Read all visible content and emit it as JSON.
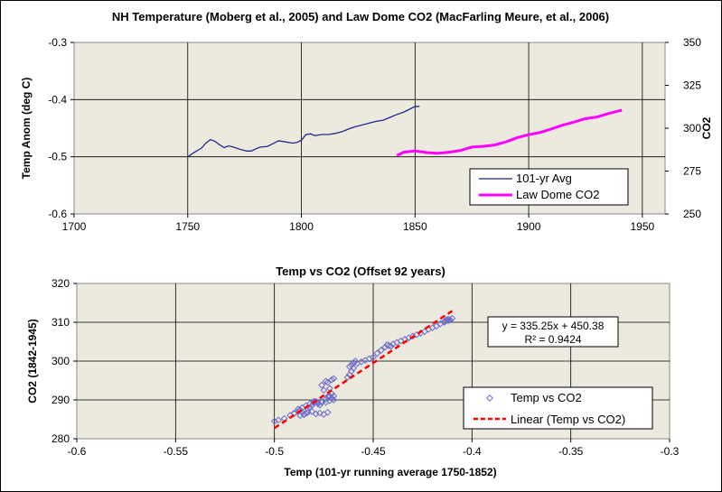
{
  "chart_data": [
    {
      "type": "line",
      "title": "NH Temperature (Moberg et al., 2005) and Law Dome CO2 (MacFarling Meure, et al., 2006)",
      "xlabel": "",
      "ylabel": "Temp Anom (deg C)",
      "y2label": "CO2",
      "xlim": [
        1700,
        1960
      ],
      "ylim": [
        -0.6,
        -0.3
      ],
      "y2lim": [
        250,
        350
      ],
      "xticks": [
        "1700",
        "1750",
        "1800",
        "1850",
        "1900",
        "1950"
      ],
      "yticks": [
        "-0.6",
        "-0.5",
        "-0.4",
        "-0.3"
      ],
      "y2ticks": [
        "250",
        "275",
        "300",
        "325",
        "350"
      ],
      "grid": true,
      "legend_position": "bottom-right",
      "series": [
        {
          "name": "101-yr Avg",
          "axis": "left",
          "color": "#1f2a8a",
          "x": [
            1750,
            1753,
            1756,
            1758,
            1760,
            1762,
            1764,
            1766,
            1768,
            1770,
            1773,
            1776,
            1778,
            1780,
            1782,
            1785,
            1788,
            1790,
            1793,
            1796,
            1798,
            1800,
            1802,
            1804,
            1806,
            1809,
            1812,
            1815,
            1818,
            1821,
            1824,
            1827,
            1830,
            1833,
            1836,
            1839,
            1842,
            1845,
            1847,
            1850,
            1852
          ],
          "y": [
            -0.5,
            -0.492,
            -0.485,
            -0.476,
            -0.47,
            -0.473,
            -0.479,
            -0.484,
            -0.481,
            -0.483,
            -0.487,
            -0.49,
            -0.49,
            -0.486,
            -0.483,
            -0.482,
            -0.476,
            -0.472,
            -0.474,
            -0.476,
            -0.475,
            -0.471,
            -0.461,
            -0.46,
            -0.463,
            -0.461,
            -0.461,
            -0.459,
            -0.456,
            -0.451,
            -0.447,
            -0.444,
            -0.441,
            -0.438,
            -0.436,
            -0.431,
            -0.426,
            -0.422,
            -0.418,
            -0.412,
            -0.412
          ]
        },
        {
          "name": "Law Dome CO2",
          "axis": "right",
          "color": "#ff00ff",
          "x": [
            1842,
            1845,
            1850,
            1855,
            1860,
            1865,
            1870,
            1875,
            1880,
            1885,
            1890,
            1895,
            1900,
            1905,
            1910,
            1915,
            1920,
            1925,
            1930,
            1935,
            1941
          ],
          "y": [
            284.0,
            286.0,
            286.8,
            285.8,
            285.4,
            286.0,
            287.0,
            289.0,
            289.4,
            290.2,
            292.0,
            294.5,
            296.2,
            297.5,
            299.6,
            301.8,
            303.6,
            305.6,
            306.5,
            308.5,
            310.5
          ]
        }
      ]
    },
    {
      "type": "scatter",
      "title": "Temp vs CO2 (Offset 92 years)",
      "xlabel": "Temp (101-yr running average 1750-1852)",
      "ylabel": "CO2 (1842-1945)",
      "xlim": [
        -0.6,
        -0.3
      ],
      "ylim": [
        280,
        320
      ],
      "xticks": [
        "-0.6",
        "-0.55",
        "-0.5",
        "-0.45",
        "-0.4",
        "-0.35",
        "-0.3"
      ],
      "yticks": [
        "280",
        "290",
        "300",
        "310",
        "320"
      ],
      "grid": true,
      "legend_position": "bottom-right",
      "series": [
        {
          "name": "Temp vs CO2",
          "color": "#6b6bcc",
          "marker": "diamond",
          "x": [
            -0.5,
            -0.498,
            -0.495,
            -0.492,
            -0.49,
            -0.488,
            -0.487,
            -0.486,
            -0.485,
            -0.484,
            -0.483,
            -0.482,
            -0.481,
            -0.48,
            -0.479,
            -0.478,
            -0.477,
            -0.476,
            -0.474,
            -0.473,
            -0.472,
            -0.471,
            -0.47,
            -0.475,
            -0.476,
            -0.473,
            -0.471,
            -0.47,
            -0.472,
            -0.474,
            -0.471,
            -0.47,
            -0.472,
            -0.474,
            -0.476,
            -0.478,
            -0.48,
            -0.482,
            -0.484,
            -0.486,
            -0.488,
            -0.49,
            -0.487,
            -0.485,
            -0.483,
            -0.481,
            -0.479,
            -0.477,
            -0.475,
            -0.473,
            -0.463,
            -0.462,
            -0.461,
            -0.46,
            -0.461,
            -0.462,
            -0.46,
            -0.459,
            -0.458,
            -0.456,
            -0.454,
            -0.452,
            -0.45,
            -0.448,
            -0.446,
            -0.444,
            -0.443,
            -0.442,
            -0.441,
            -0.44,
            -0.438,
            -0.436,
            -0.434,
            -0.432,
            -0.43,
            -0.428,
            -0.426,
            -0.424,
            -0.422,
            -0.42,
            -0.418,
            -0.416,
            -0.414,
            -0.412,
            -0.411,
            -0.41,
            -0.412,
            -0.414,
            -0.413
          ],
          "y": [
            284.5,
            284.8,
            285.2,
            286.0,
            286.5,
            287.0,
            287.4,
            286.8,
            286.3,
            286.6,
            287.5,
            288.0,
            288.6,
            289.2,
            289.6,
            289.0,
            288.7,
            289.4,
            290.2,
            290.8,
            291.0,
            290.4,
            290.0,
            292.5,
            293.8,
            294.5,
            295.2,
            295.5,
            293.0,
            294.8,
            291.6,
            291.0,
            289.8,
            289.4,
            289.5,
            289.3,
            289.6,
            289.0,
            288.5,
            288.0,
            287.6,
            286.6,
            286.0,
            286.2,
            286.8,
            287.0,
            286.4,
            286.6,
            286.3,
            286.8,
            295.8,
            296.5,
            297.4,
            298.2,
            299.0,
            298.6,
            299.6,
            300.0,
            299.4,
            299.8,
            300.2,
            300.6,
            301.0,
            302.0,
            302.8,
            303.6,
            304.2,
            304.0,
            303.8,
            304.4,
            304.8,
            305.2,
            305.6,
            306.0,
            306.4,
            306.8,
            307.2,
            307.6,
            308.2,
            308.6,
            309.0,
            309.6,
            310.0,
            310.4,
            310.6,
            311.0,
            310.8,
            310.2,
            310.6
          ]
        },
        {
          "name": "Linear (Temp vs CO2)",
          "color": "#ff0000",
          "style": "dashed",
          "x": [
            -0.5,
            -0.41
          ],
          "y": [
            282.755,
            312.928
          ]
        }
      ],
      "annotation": [
        "y = 335.25x + 450.38",
        "R² = 0.9424"
      ]
    }
  ]
}
